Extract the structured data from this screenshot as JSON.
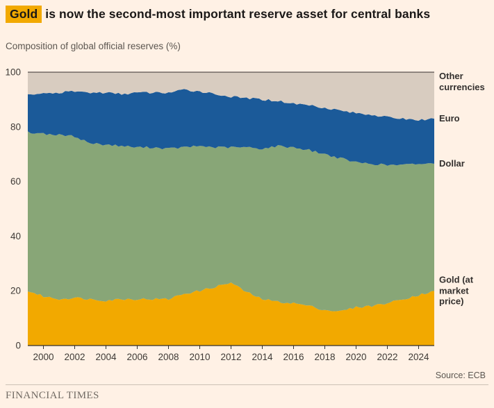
{
  "header": {
    "highlight": "Gold",
    "title_rest": "is now the second-most important reserve asset for central banks",
    "subtitle": "Composition of global official reserves (%)"
  },
  "chart_data": {
    "type": "area",
    "stacked": true,
    "title": "Gold is now the second-most important reserve asset for central banks",
    "subtitle": "Composition of global official reserves (%)",
    "xlabel": "",
    "ylabel": "Composition of global official reserves (%)",
    "ylim": [
      0,
      100
    ],
    "x_range": [
      1999,
      2025
    ],
    "y_ticks": [
      0,
      20,
      40,
      60,
      80,
      100
    ],
    "x_ticks": [
      2000,
      2002,
      2004,
      2006,
      2008,
      2010,
      2012,
      2014,
      2016,
      2018,
      2020,
      2022,
      2024
    ],
    "grid": true,
    "legend_position": "right",
    "years": [
      1999,
      2000,
      2001,
      2002,
      2003,
      2004,
      2005,
      2006,
      2007,
      2008,
      2009,
      2010,
      2011,
      2012,
      2013,
      2014,
      2015,
      2016,
      2017,
      2018,
      2019,
      2020,
      2021,
      2022,
      2023,
      2024,
      2025
    ],
    "series": [
      {
        "name": "Gold (at market price)",
        "color": "#F2A900",
        "values": [
          20,
          18,
          17,
          17.5,
          17,
          16.5,
          17,
          17,
          17,
          17,
          19,
          20,
          21.5,
          23,
          19.5,
          17,
          16,
          15.5,
          14.5,
          13,
          12.5,
          14,
          14.5,
          15.5,
          17,
          18.5,
          20
        ]
      },
      {
        "name": "Dollar",
        "color": "#88A677",
        "values": [
          58,
          59.5,
          60,
          59,
          57,
          57,
          56,
          55.5,
          55.5,
          55,
          53.5,
          53,
          51,
          49.5,
          53,
          55,
          57,
          57,
          57,
          57,
          56,
          53,
          52,
          50.5,
          49,
          48,
          46.5
        ]
      },
      {
        "name": "Euro",
        "color": "#1B5A99",
        "values": [
          14,
          14.5,
          15.5,
          16.5,
          18.5,
          19,
          19,
          20,
          20,
          20.5,
          21,
          20,
          19.5,
          18.5,
          18,
          18,
          16.5,
          16,
          16.5,
          17,
          17.5,
          18,
          18,
          17.5,
          17,
          16,
          16.5
        ]
      },
      {
        "name": "Other currencies",
        "color": "#D8CCC0",
        "values": [
          8,
          8,
          7.5,
          7,
          7.5,
          7.5,
          8,
          7.5,
          7.5,
          7.5,
          6.5,
          7,
          8,
          9,
          9.5,
          10,
          10.5,
          11.5,
          12,
          13,
          14,
          15,
          15.5,
          16.5,
          17,
          17.5,
          17
        ]
      }
    ]
  },
  "footer": {
    "source": "Source: ECB",
    "brand": "FINANCIAL TIMES"
  }
}
